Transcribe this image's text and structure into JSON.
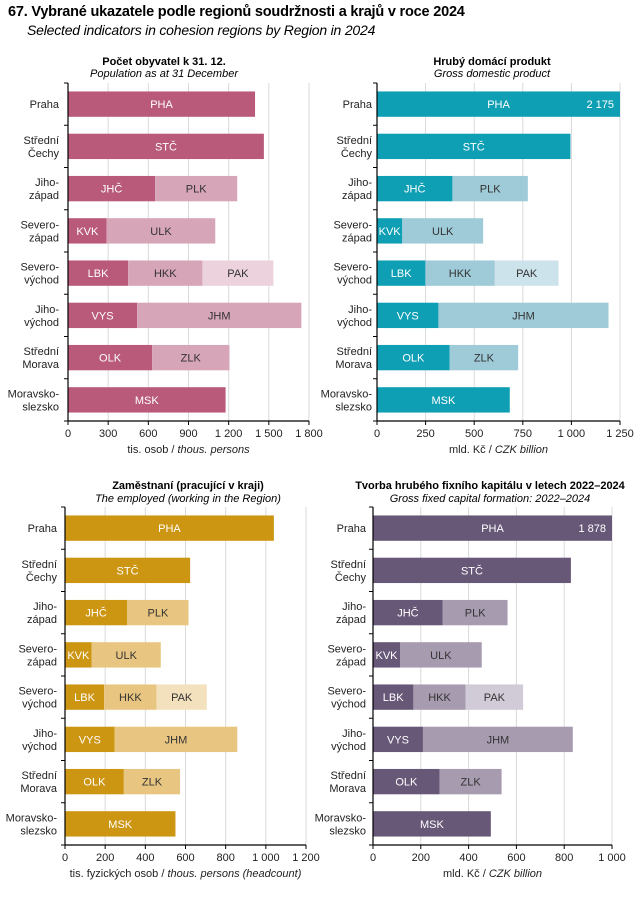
{
  "header": {
    "title": "67. Vybrané ukazatele podle regionů soudržnosti a krajů v roce 2024",
    "subtitle": "Selected indicators in cohesion regions by Region in 2024"
  },
  "chart_data": [
    {
      "id": "population",
      "type": "bar",
      "orientation": "horizontal-stacked",
      "title": "Počet obyvatel k 31. 12.",
      "subtitle": "Population as at 31 December",
      "xlabel_cz": "tis. osob / ",
      "xlabel_en": "thous. persons",
      "xlim": [
        0,
        1800
      ],
      "ticks": [
        0,
        300,
        600,
        900,
        1200,
        1500,
        1800
      ],
      "tick_labels": [
        "0",
        "300",
        "600",
        "900",
        "1 200",
        "1 500",
        "1 800"
      ],
      "grid": true,
      "colors": [
        "#b95a7b",
        "#d6a5b7",
        "#ebd2dc"
      ],
      "label_colors": [
        "#ffffff",
        "#333333",
        "#333333"
      ],
      "categories": [
        {
          "label": [
            "Praha"
          ],
          "segments": [
            {
              "code": "PHA",
              "value": 1397
            }
          ]
        },
        {
          "label": [
            "Střední",
            "Čechy"
          ],
          "segments": [
            {
              "code": "STČ",
              "value": 1463
            }
          ]
        },
        {
          "label": [
            "Jiho-",
            "západ"
          ],
          "segments": [
            {
              "code": "JHČ",
              "value": 651
            },
            {
              "code": "PLK",
              "value": 613
            }
          ]
        },
        {
          "label": [
            "Severo-",
            "západ"
          ],
          "segments": [
            {
              "code": "KVK",
              "value": 289
            },
            {
              "code": "ULK",
              "value": 811
            }
          ]
        },
        {
          "label": [
            "Severo-",
            "východ"
          ],
          "segments": [
            {
              "code": "LBK",
              "value": 449
            },
            {
              "code": "HKK",
              "value": 555
            },
            {
              "code": "PAK",
              "value": 530
            }
          ]
        },
        {
          "label": [
            "Jiho-",
            "východ"
          ],
          "segments": [
            {
              "code": "VYS",
              "value": 516
            },
            {
              "code": "JHM",
              "value": 1227
            }
          ]
        },
        {
          "label": [
            "Střední",
            "Morava"
          ],
          "segments": [
            {
              "code": "OLK",
              "value": 628
            },
            {
              "code": "ZLK",
              "value": 578
            }
          ]
        },
        {
          "label": [
            "Moravsko-",
            "slezsko"
          ],
          "segments": [
            {
              "code": "MSK",
              "value": 1177
            }
          ]
        }
      ]
    },
    {
      "id": "gdp",
      "type": "bar",
      "orientation": "horizontal-stacked",
      "title": "Hrubý domácí produkt",
      "subtitle": "Gross domestic product",
      "xlabel_cz": "mld. Kč / ",
      "xlabel_en": "CZK billion",
      "xlim": [
        0,
        1250
      ],
      "ticks": [
        0,
        250,
        500,
        750,
        1000,
        1250
      ],
      "tick_labels": [
        "0",
        "250",
        "500",
        "750",
        "1 000",
        "1 250"
      ],
      "grid": true,
      "colors": [
        "#0f9fb5",
        "#9fcad8",
        "#cde3ec"
      ],
      "label_colors": [
        "#ffffff",
        "#333333",
        "#333333"
      ],
      "categories": [
        {
          "label": [
            "Praha"
          ],
          "segments": [
            {
              "code": "PHA",
              "value": 2175
            }
          ],
          "value_label": "2 175"
        },
        {
          "label": [
            "Střední",
            "Čechy"
          ],
          "segments": [
            {
              "code": "STČ",
              "value": 995
            }
          ]
        },
        {
          "label": [
            "Jiho-",
            "západ"
          ],
          "segments": [
            {
              "code": "JHČ",
              "value": 388
            },
            {
              "code": "PLK",
              "value": 388
            }
          ]
        },
        {
          "label": [
            "Severo-",
            "západ"
          ],
          "segments": [
            {
              "code": "KVK",
              "value": 130
            },
            {
              "code": "ULK",
              "value": 416
            }
          ]
        },
        {
          "label": [
            "Severo-",
            "východ"
          ],
          "segments": [
            {
              "code": "LBK",
              "value": 249
            },
            {
              "code": "HKK",
              "value": 357
            },
            {
              "code": "PAK",
              "value": 328
            }
          ]
        },
        {
          "label": [
            "Jiho-",
            "východ"
          ],
          "segments": [
            {
              "code": "VYS",
              "value": 316
            },
            {
              "code": "JHM",
              "value": 875
            }
          ]
        },
        {
          "label": [
            "Střední",
            "Morava"
          ],
          "segments": [
            {
              "code": "OLK",
              "value": 374
            },
            {
              "code": "ZLK",
              "value": 352
            }
          ]
        },
        {
          "label": [
            "Moravsko-",
            "slezsko"
          ],
          "segments": [
            {
              "code": "MSK",
              "value": 683
            }
          ]
        }
      ]
    },
    {
      "id": "employed",
      "type": "bar",
      "orientation": "horizontal-stacked",
      "title": "Zaměstnaní (pracující v kraji)",
      "subtitle": "The employed (working in the Region)",
      "xlabel_cz": "tis. fyzických osob / ",
      "xlabel_en": "thous. persons (headcount)",
      "xlim": [
        0,
        1200
      ],
      "ticks": [
        0,
        200,
        400,
        600,
        800,
        1000,
        1200
      ],
      "tick_labels": [
        "0",
        "200",
        "400",
        "600",
        "800",
        "1 000",
        "1 200"
      ],
      "grid": true,
      "colors": [
        "#cc9512",
        "#e8c682",
        "#f3e0bd"
      ],
      "label_colors": [
        "#ffffff",
        "#333333",
        "#333333"
      ],
      "categories": [
        {
          "label": [
            "Praha"
          ],
          "segments": [
            {
              "code": "PHA",
              "value": 1040
            }
          ]
        },
        {
          "label": [
            "Střední",
            "Čechy"
          ],
          "segments": [
            {
              "code": "STČ",
              "value": 623
            }
          ]
        },
        {
          "label": [
            "Jiho-",
            "západ"
          ],
          "segments": [
            {
              "code": "JHČ",
              "value": 310
            },
            {
              "code": "PLK",
              "value": 305
            }
          ]
        },
        {
          "label": [
            "Severo-",
            "západ"
          ],
          "segments": [
            {
              "code": "KVK",
              "value": 133
            },
            {
              "code": "ULK",
              "value": 344
            }
          ]
        },
        {
          "label": [
            "Severo-",
            "východ"
          ],
          "segments": [
            {
              "code": "LBK",
              "value": 195
            },
            {
              "code": "HKK",
              "value": 261
            },
            {
              "code": "PAK",
              "value": 250
            }
          ]
        },
        {
          "label": [
            "Jiho-",
            "východ"
          ],
          "segments": [
            {
              "code": "VYS",
              "value": 247
            },
            {
              "code": "JHM",
              "value": 611
            }
          ]
        },
        {
          "label": [
            "Střední",
            "Morava"
          ],
          "segments": [
            {
              "code": "OLK",
              "value": 293
            },
            {
              "code": "ZLK",
              "value": 280
            }
          ]
        },
        {
          "label": [
            "Moravsko-",
            "slezsko"
          ],
          "segments": [
            {
              "code": "MSK",
              "value": 550
            }
          ]
        }
      ]
    },
    {
      "id": "gfcf",
      "type": "bar",
      "orientation": "horizontal-stacked",
      "title": "Tvorba hrubého fixního kapitálu v letech 2022–2024",
      "subtitle": "Gross fixed capital formation: 2022–2024",
      "xlabel_cz": "mld. Kč / ",
      "xlabel_en": "CZK billion",
      "xlim": [
        0,
        1000
      ],
      "ticks": [
        0,
        200,
        400,
        600,
        800,
        1000
      ],
      "tick_labels": [
        "0",
        "200",
        "400",
        "600",
        "800",
        "1 000"
      ],
      "grid": true,
      "colors": [
        "#675878",
        "#a79bb0",
        "#d1cbd8"
      ],
      "label_colors": [
        "#ffffff",
        "#333333",
        "#333333"
      ],
      "categories": [
        {
          "label": [
            "Praha"
          ],
          "segments": [
            {
              "code": "PHA",
              "value": 1878
            }
          ],
          "value_label": "1 878"
        },
        {
          "label": [
            "Střední",
            "Čechy"
          ],
          "segments": [
            {
              "code": "STČ",
              "value": 828
            }
          ]
        },
        {
          "label": [
            "Jiho-",
            "západ"
          ],
          "segments": [
            {
              "code": "JHČ",
              "value": 292
            },
            {
              "code": "PLK",
              "value": 271
            }
          ]
        },
        {
          "label": [
            "Severo-",
            "západ"
          ],
          "segments": [
            {
              "code": "KVK",
              "value": 113
            },
            {
              "code": "ULK",
              "value": 342
            }
          ]
        },
        {
          "label": [
            "Severo-",
            "východ"
          ],
          "segments": [
            {
              "code": "LBK",
              "value": 169
            },
            {
              "code": "HKK",
              "value": 219
            },
            {
              "code": "PAK",
              "value": 240
            }
          ]
        },
        {
          "label": [
            "Jiho-",
            "východ"
          ],
          "segments": [
            {
              "code": "VYS",
              "value": 209
            },
            {
              "code": "JHM",
              "value": 627
            }
          ]
        },
        {
          "label": [
            "Střední",
            "Morava"
          ],
          "segments": [
            {
              "code": "OLK",
              "value": 279
            },
            {
              "code": "ZLK",
              "value": 259
            }
          ]
        },
        {
          "label": [
            "Moravsko-",
            "slezsko"
          ],
          "segments": [
            {
              "code": "MSK",
              "value": 493
            }
          ]
        }
      ]
    }
  ]
}
